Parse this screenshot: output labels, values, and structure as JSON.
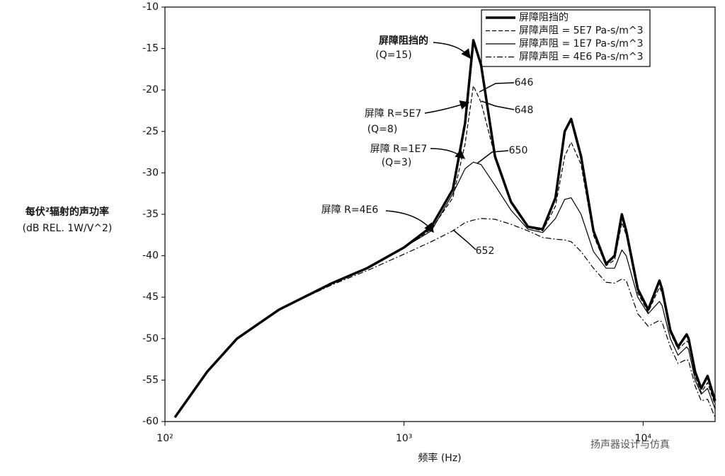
{
  "chart_data": {
    "type": "line",
    "x_label": "频率 (Hz)",
    "y_label": [
      "每伏²辐射的声功率",
      "(dB REL. 1W/V^2)"
    ],
    "watermark": "扬声器设计与仿真",
    "xscale": "log",
    "xlim": [
      100,
      20000
    ],
    "xticks": [
      {
        "value": 100,
        "label": "10²"
      },
      {
        "value": 1000,
        "label": "10³"
      },
      {
        "value": 10000,
        "label": "10⁴"
      }
    ],
    "ylim": [
      -60,
      -10
    ],
    "yticks": [
      -60,
      -55,
      -50,
      -45,
      -40,
      -35,
      -30,
      -25,
      -20,
      -15,
      -10
    ],
    "legend": "upper right",
    "x": [
      110,
      150,
      200,
      300,
      500,
      700,
      1000,
      1300,
      1600,
      1800,
      1950,
      2100,
      2400,
      2800,
      3300,
      3800,
      4300,
      4700,
      5000,
      5500,
      6200,
      7000,
      7600,
      8150,
      8500,
      9500,
      10500,
      11700,
      12000,
      13000,
      14000,
      15200,
      15500,
      16500,
      17500,
      18600,
      20000
    ],
    "series": [
      {
        "name": "屏障阻挡的",
        "color": "#000000",
        "line_style": "thick",
        "values": [
          -59.5,
          -54,
          -50,
          -46.5,
          -43.3,
          -41.5,
          -39,
          -36.5,
          -32,
          -24,
          -14,
          -17,
          -28,
          -33.5,
          -36.5,
          -36.8,
          -33,
          -25,
          -23.5,
          -28,
          -37,
          -41,
          -40,
          -35,
          -37,
          -44,
          -46.5,
          -43,
          -44,
          -49,
          -51,
          -49.5,
          -50,
          -54,
          -56,
          -54.5,
          -57.5
        ]
      },
      {
        "name": "屏障声阻 = 5E7 Pa-s/m^3",
        "color": "#000000",
        "line_style": "dashed",
        "values": [
          -59.5,
          -54,
          -50,
          -46.5,
          -43.3,
          -41.5,
          -39,
          -36.8,
          -33,
          -26.5,
          -19.5,
          -21.5,
          -28,
          -33.5,
          -36.6,
          -37,
          -34,
          -28,
          -26.3,
          -29,
          -37.5,
          -41.2,
          -40.5,
          -36,
          -37.5,
          -44.5,
          -46.8,
          -43.8,
          -44.5,
          -49.3,
          -51.3,
          -50.3,
          -50.5,
          -54.5,
          -56.5,
          -55.3,
          -58
        ]
      },
      {
        "name": "屏障声阻 = 1E7 Pa-s/m^3",
        "color": "#000000",
        "line_style": "solid",
        "values": [
          -59.5,
          -54,
          -50,
          -46.5,
          -43.3,
          -41.5,
          -39,
          -37,
          -32.5,
          -29.5,
          -28.7,
          -29,
          -31.5,
          -34.5,
          -36.8,
          -37.2,
          -35.5,
          -33.2,
          -33,
          -35,
          -39.5,
          -41.5,
          -41.5,
          -39.3,
          -40,
          -45,
          -47,
          -45.5,
          -46,
          -50,
          -52,
          -51,
          -51.3,
          -55,
          -56.7,
          -56,
          -58.5
        ]
      },
      {
        "name": "屏障声阻 = 4E6 Pa-s/m^3",
        "color": "#000000",
        "line_style": "dashdot",
        "values": [
          -59.5,
          -54,
          -50,
          -46.5,
          -43.5,
          -41.8,
          -39.8,
          -38.3,
          -37,
          -36,
          -35.7,
          -35.5,
          -35.6,
          -36.2,
          -37,
          -37.8,
          -38,
          -38.1,
          -38.3,
          -39.5,
          -41.5,
          -43.2,
          -43.3,
          -42.8,
          -43,
          -47,
          -48.5,
          -47.8,
          -48,
          -51,
          -53,
          -52.5,
          -52.7,
          -55.7,
          -57.5,
          -57.3,
          -59.5
        ]
      }
    ],
    "annotations": [
      {
        "lines": [
          "屏障阻挡的",
          "(Q=15)"
        ]
      },
      {
        "lines": [
          "屏障 R=5E7",
          "(Q=8)"
        ]
      },
      {
        "lines": [
          "屏障 R=1E7",
          "(Q=3)"
        ]
      },
      {
        "lines": [
          "屏障 R=4E6"
        ]
      },
      {
        "lines": [
          "646"
        ]
      },
      {
        "lines": [
          "648"
        ]
      },
      {
        "lines": [
          "650"
        ]
      },
      {
        "lines": [
          "652"
        ]
      }
    ]
  }
}
